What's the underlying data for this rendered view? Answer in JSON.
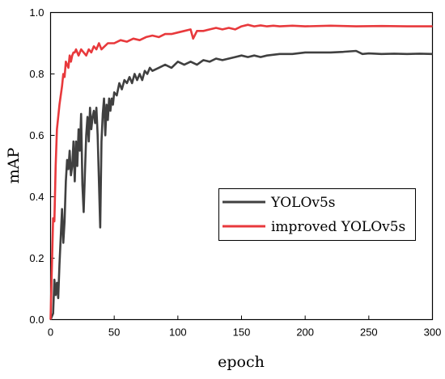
{
  "chart_data": {
    "type": "line",
    "title": "",
    "xlabel": "epoch",
    "ylabel": "mAP",
    "xlim": [
      0,
      300
    ],
    "ylim": [
      0.0,
      1.0
    ],
    "xticks": [
      0,
      50,
      100,
      150,
      200,
      250,
      300
    ],
    "yticks": [
      0.0,
      0.2,
      0.4,
      0.6,
      0.8,
      1.0
    ],
    "grid": false,
    "legend_position": "center-right",
    "series": [
      {
        "name": "YOLOv5s",
        "color": "#404040",
        "points": [
          [
            0,
            0.0
          ],
          [
            2,
            0.02
          ],
          [
            3,
            0.13
          ],
          [
            4,
            0.08
          ],
          [
            5,
            0.12
          ],
          [
            6,
            0.07
          ],
          [
            7,
            0.18
          ],
          [
            8,
            0.27
          ],
          [
            9,
            0.36
          ],
          [
            10,
            0.25
          ],
          [
            11,
            0.32
          ],
          [
            12,
            0.45
          ],
          [
            13,
            0.52
          ],
          [
            14,
            0.49
          ],
          [
            15,
            0.55
          ],
          [
            16,
            0.47
          ],
          [
            17,
            0.5
          ],
          [
            18,
            0.58
          ],
          [
            19,
            0.45
          ],
          [
            20,
            0.58
          ],
          [
            21,
            0.5
          ],
          [
            22,
            0.62
          ],
          [
            23,
            0.55
          ],
          [
            24,
            0.67
          ],
          [
            25,
            0.44
          ],
          [
            26,
            0.35
          ],
          [
            27,
            0.48
          ],
          [
            28,
            0.6
          ],
          [
            29,
            0.66
          ],
          [
            30,
            0.58
          ],
          [
            31,
            0.69
          ],
          [
            32,
            0.62
          ],
          [
            33,
            0.66
          ],
          [
            34,
            0.68
          ],
          [
            35,
            0.64
          ],
          [
            36,
            0.69
          ],
          [
            37,
            0.6
          ],
          [
            38,
            0.45
          ],
          [
            39,
            0.3
          ],
          [
            40,
            0.58
          ],
          [
            41,
            0.67
          ],
          [
            42,
            0.72
          ],
          [
            43,
            0.6
          ],
          [
            44,
            0.7
          ],
          [
            45,
            0.65
          ],
          [
            46,
            0.72
          ],
          [
            47,
            0.68
          ],
          [
            48,
            0.72
          ],
          [
            49,
            0.7
          ],
          [
            50,
            0.74
          ],
          [
            52,
            0.73
          ],
          [
            54,
            0.77
          ],
          [
            56,
            0.75
          ],
          [
            58,
            0.78
          ],
          [
            60,
            0.77
          ],
          [
            62,
            0.79
          ],
          [
            64,
            0.77
          ],
          [
            66,
            0.8
          ],
          [
            68,
            0.78
          ],
          [
            70,
            0.8
          ],
          [
            72,
            0.78
          ],
          [
            74,
            0.81
          ],
          [
            76,
            0.8
          ],
          [
            78,
            0.82
          ],
          [
            80,
            0.81
          ],
          [
            85,
            0.82
          ],
          [
            90,
            0.83
          ],
          [
            95,
            0.82
          ],
          [
            100,
            0.84
          ],
          [
            105,
            0.83
          ],
          [
            110,
            0.84
          ],
          [
            115,
            0.83
          ],
          [
            120,
            0.845
          ],
          [
            125,
            0.84
          ],
          [
            130,
            0.85
          ],
          [
            135,
            0.845
          ],
          [
            140,
            0.85
          ],
          [
            145,
            0.855
          ],
          [
            150,
            0.86
          ],
          [
            155,
            0.855
          ],
          [
            160,
            0.86
          ],
          [
            165,
            0.855
          ],
          [
            170,
            0.86
          ],
          [
            180,
            0.865
          ],
          [
            190,
            0.865
          ],
          [
            200,
            0.87
          ],
          [
            210,
            0.87
          ],
          [
            220,
            0.87
          ],
          [
            230,
            0.872
          ],
          [
            240,
            0.875
          ],
          [
            245,
            0.865
          ],
          [
            250,
            0.867
          ],
          [
            260,
            0.865
          ],
          [
            270,
            0.866
          ],
          [
            280,
            0.865
          ],
          [
            290,
            0.866
          ],
          [
            300,
            0.865
          ]
        ]
      },
      {
        "name": "improved YOLOv5s",
        "color": "#e8393c",
        "points": [
          [
            0,
            0.0
          ],
          [
            2,
            0.33
          ],
          [
            3,
            0.32
          ],
          [
            4,
            0.5
          ],
          [
            5,
            0.62
          ],
          [
            6,
            0.66
          ],
          [
            7,
            0.7
          ],
          [
            8,
            0.73
          ],
          [
            9,
            0.76
          ],
          [
            10,
            0.8
          ],
          [
            11,
            0.79
          ],
          [
            12,
            0.84
          ],
          [
            13,
            0.83
          ],
          [
            14,
            0.82
          ],
          [
            15,
            0.86
          ],
          [
            16,
            0.84
          ],
          [
            17,
            0.86
          ],
          [
            18,
            0.87
          ],
          [
            19,
            0.87
          ],
          [
            20,
            0.88
          ],
          [
            22,
            0.86
          ],
          [
            24,
            0.88
          ],
          [
            26,
            0.87
          ],
          [
            28,
            0.86
          ],
          [
            30,
            0.88
          ],
          [
            32,
            0.87
          ],
          [
            34,
            0.89
          ],
          [
            36,
            0.88
          ],
          [
            38,
            0.9
          ],
          [
            40,
            0.88
          ],
          [
            45,
            0.9
          ],
          [
            50,
            0.9
          ],
          [
            55,
            0.91
          ],
          [
            60,
            0.905
          ],
          [
            65,
            0.915
          ],
          [
            70,
            0.91
          ],
          [
            75,
            0.92
          ],
          [
            80,
            0.925
          ],
          [
            85,
            0.92
          ],
          [
            90,
            0.93
          ],
          [
            95,
            0.93
          ],
          [
            100,
            0.935
          ],
          [
            105,
            0.94
          ],
          [
            110,
            0.945
          ],
          [
            112,
            0.915
          ],
          [
            115,
            0.94
          ],
          [
            120,
            0.94
          ],
          [
            125,
            0.945
          ],
          [
            130,
            0.95
          ],
          [
            135,
            0.945
          ],
          [
            140,
            0.95
          ],
          [
            145,
            0.945
          ],
          [
            150,
            0.955
          ],
          [
            155,
            0.96
          ],
          [
            160,
            0.955
          ],
          [
            165,
            0.958
          ],
          [
            170,
            0.955
          ],
          [
            175,
            0.957
          ],
          [
            180,
            0.955
          ],
          [
            190,
            0.957
          ],
          [
            200,
            0.955
          ],
          [
            220,
            0.957
          ],
          [
            240,
            0.955
          ],
          [
            260,
            0.956
          ],
          [
            280,
            0.955
          ],
          [
            300,
            0.955
          ]
        ]
      }
    ]
  }
}
